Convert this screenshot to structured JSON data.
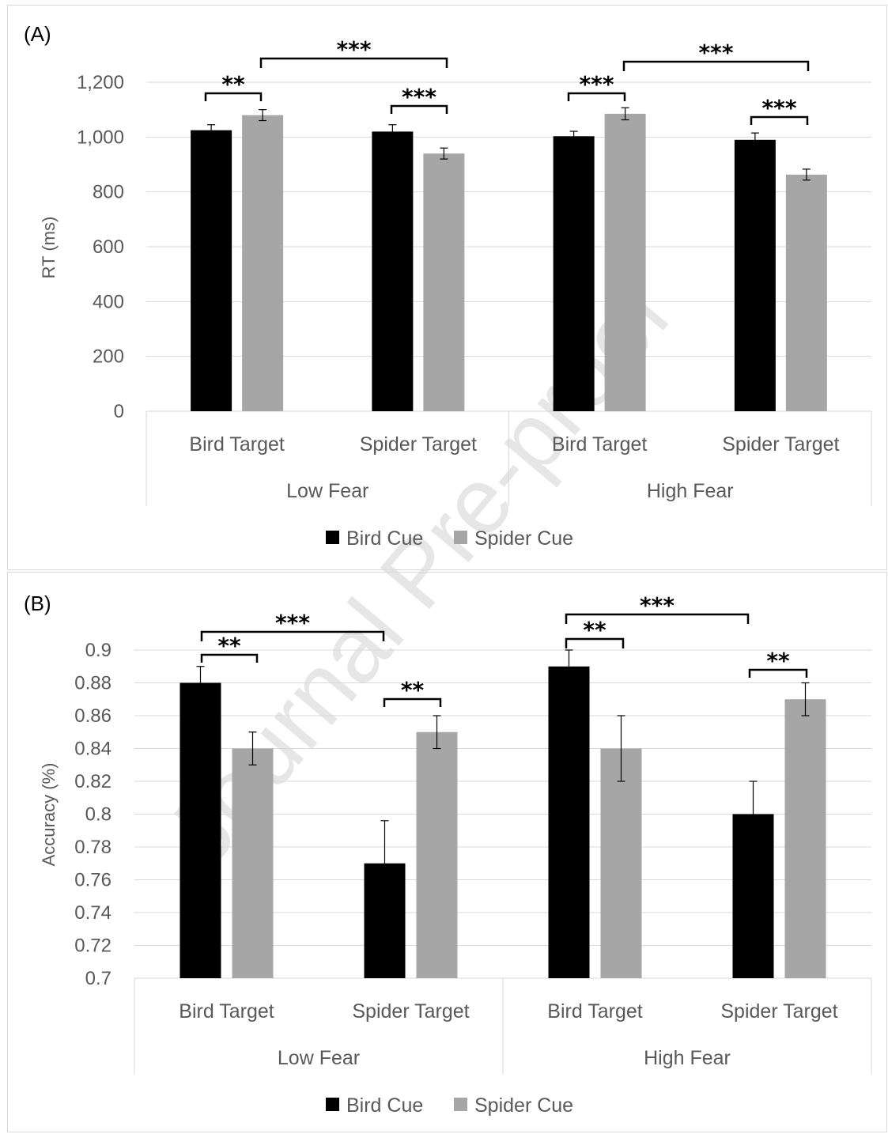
{
  "watermark": "Journal Pre-proof",
  "legend": {
    "bird_cue": "Bird Cue",
    "spider_cue": "Spider Cue"
  },
  "colors": {
    "bird_cue": "#000000",
    "spider_cue": "#a6a6a6",
    "grid": "#d9d9d9",
    "text": "#595959"
  },
  "chart_data": [
    {
      "type": "bar",
      "panel_label": "(A)",
      "ylabel": "RT (ms)",
      "ylim": [
        0,
        1200
      ],
      "yticks": [
        "0",
        "200",
        "400",
        "600",
        "800",
        "1,000",
        "1,200"
      ],
      "groups": [
        "Low Fear",
        "High Fear"
      ],
      "categories": [
        "Bird Target",
        "Spider Target",
        "Bird Target",
        "Spider Target"
      ],
      "series": [
        {
          "name": "Bird Cue",
          "values": [
            1025,
            1020,
            1003,
            990
          ],
          "errors": [
            20,
            25,
            18,
            25
          ]
        },
        {
          "name": "Spider Cue",
          "values": [
            1080,
            940,
            1085,
            863
          ],
          "errors": [
            20,
            20,
            22,
            20
          ]
        }
      ],
      "significance": [
        {
          "label": "**",
          "from": [
            0,
            0
          ],
          "to": [
            0,
            1
          ]
        },
        {
          "label": "***",
          "from": [
            1,
            0
          ],
          "to": [
            1,
            1
          ]
        },
        {
          "label": "***",
          "from": [
            0,
            1
          ],
          "to": [
            1,
            1
          ]
        },
        {
          "label": "***",
          "from": [
            2,
            0
          ],
          "to": [
            2,
            1
          ]
        },
        {
          "label": "***",
          "from": [
            3,
            0
          ],
          "to": [
            3,
            1
          ]
        },
        {
          "label": "***",
          "from": [
            2,
            1
          ],
          "to": [
            3,
            1
          ]
        }
      ],
      "grid": true,
      "legend_position": "bottom"
    },
    {
      "type": "bar",
      "panel_label": "(B)",
      "ylabel": "Accuracy (%)",
      "ylim": [
        0.7,
        0.9
      ],
      "yticks": [
        "0.7",
        "0.72",
        "0.74",
        "0.76",
        "0.78",
        "0.8",
        "0.82",
        "0.84",
        "0.86",
        "0.88",
        "0.9"
      ],
      "groups": [
        "Low Fear",
        "High Fear"
      ],
      "categories": [
        "Bird Target",
        "Spider Target",
        "Bird Target",
        "Spider Target"
      ],
      "series": [
        {
          "name": "Bird Cue",
          "values": [
            0.88,
            0.77,
            0.89,
            0.8
          ],
          "errors": [
            0.01,
            0.026,
            0.01,
            0.02
          ]
        },
        {
          "name": "Spider Cue",
          "values": [
            0.84,
            0.85,
            0.84,
            0.87
          ],
          "errors": [
            0.01,
            0.01,
            0.02,
            0.01
          ]
        }
      ],
      "significance": [
        {
          "label": "**",
          "from": [
            0,
            0
          ],
          "to": [
            0,
            1
          ]
        },
        {
          "label": "***",
          "from": [
            0,
            0
          ],
          "to": [
            1,
            0
          ]
        },
        {
          "label": "**",
          "from": [
            1,
            0
          ],
          "to": [
            1,
            1
          ]
        },
        {
          "label": "**",
          "from": [
            2,
            0
          ],
          "to": [
            2,
            1
          ]
        },
        {
          "label": "***",
          "from": [
            2,
            0
          ],
          "to": [
            3,
            0
          ]
        },
        {
          "label": "**",
          "from": [
            3,
            0
          ],
          "to": [
            3,
            1
          ]
        }
      ],
      "grid": true,
      "legend_position": "bottom"
    }
  ]
}
